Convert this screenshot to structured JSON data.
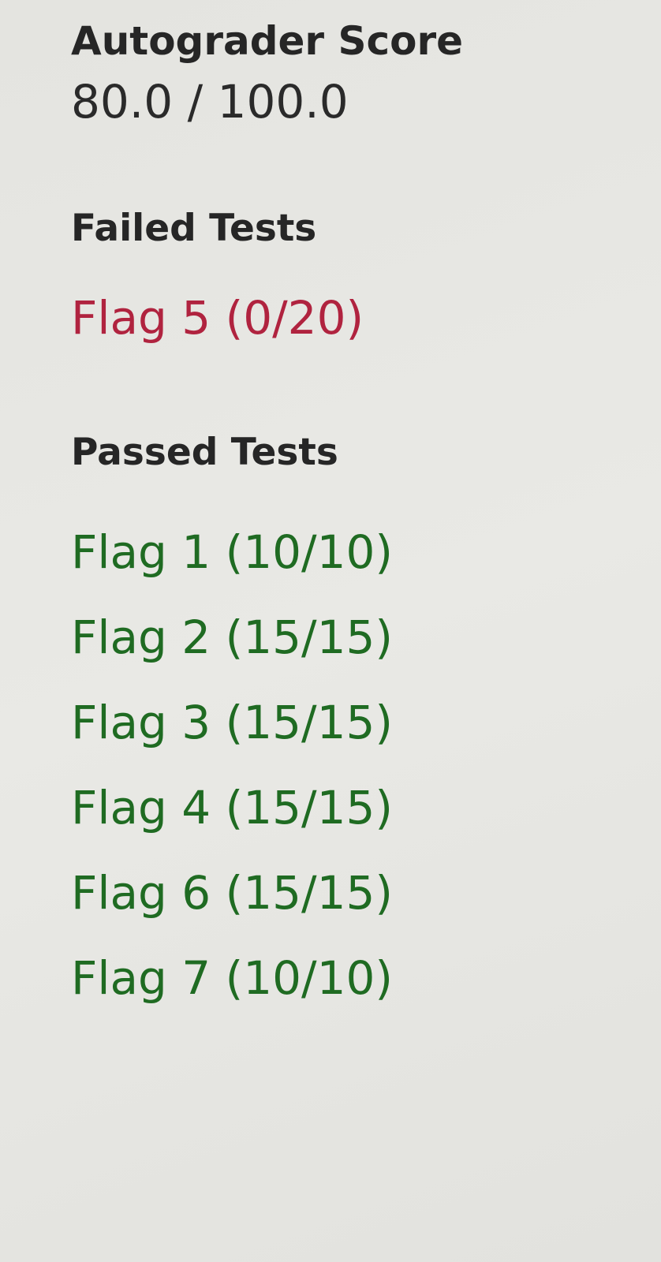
{
  "autograder": {
    "label": "Autograder Score",
    "value": "80.0 / 100.0"
  },
  "failed": {
    "title": "Failed Tests",
    "color": "#b0233f",
    "items": [
      {
        "label": "Flag 5 (0/20)"
      }
    ]
  },
  "passed": {
    "title": "Passed Tests",
    "color": "#1f6b22",
    "items": [
      {
        "label": "Flag 1 (10/10)"
      },
      {
        "label": "Flag 2 (15/15)"
      },
      {
        "label": "Flag 3 (15/15)"
      },
      {
        "label": "Flag 4 (15/15)"
      },
      {
        "label": "Flag 6 (15/15)"
      },
      {
        "label": "Flag 7 (10/10)"
      }
    ]
  }
}
